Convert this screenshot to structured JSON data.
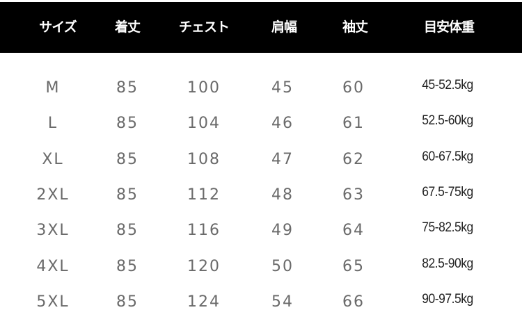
{
  "table": {
    "headers": [
      "サイズ",
      "着丈",
      "チェスト",
      "肩幅",
      "袖丈",
      "目安体重"
    ],
    "rows": [
      [
        "M",
        "85",
        "100",
        "45",
        "60",
        "45-52.5kg"
      ],
      [
        "L",
        "85",
        "104",
        "46",
        "61",
        "52.5-60kg"
      ],
      [
        "XL",
        "85",
        "108",
        "47",
        "62",
        "60-67.5kg"
      ],
      [
        "2XL",
        "85",
        "112",
        "48",
        "63",
        "67.5-75kg"
      ],
      [
        "3XL",
        "85",
        "116",
        "49",
        "64",
        "75-82.5kg"
      ],
      [
        "4XL",
        "85",
        "120",
        "50",
        "65",
        "82.5-90kg"
      ],
      [
        "5XL",
        "85",
        "124",
        "54",
        "66",
        "90-97.5kg"
      ]
    ]
  }
}
